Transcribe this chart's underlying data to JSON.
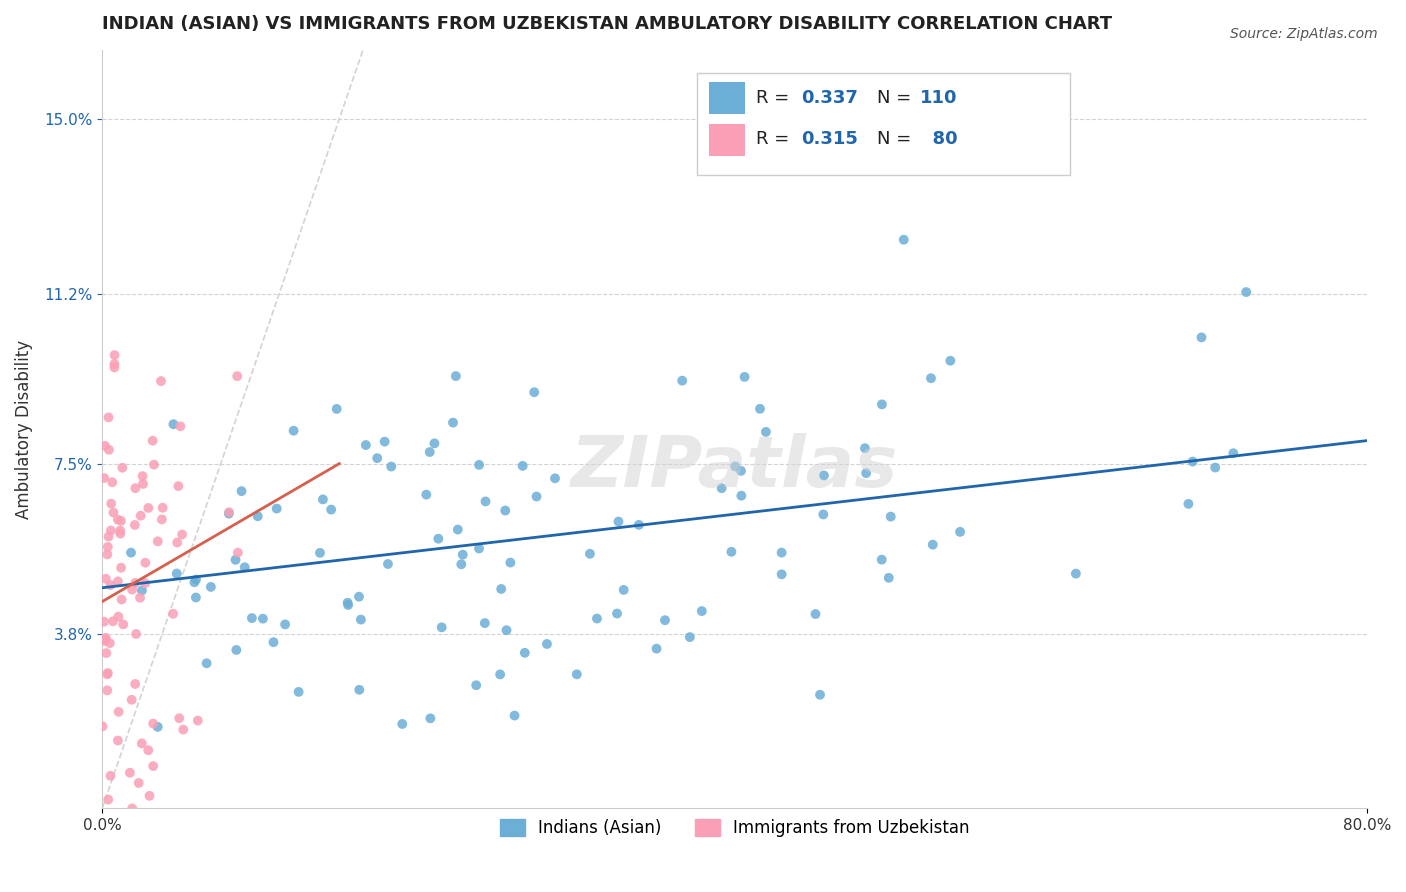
{
  "title": "INDIAN (ASIAN) VS IMMIGRANTS FROM UZBEKISTAN AMBULATORY DISABILITY CORRELATION CHART",
  "source": "Source: ZipAtlas.com",
  "xlabel": "",
  "ylabel": "Ambulatory Disability",
  "xlim": [
    0.0,
    0.8
  ],
  "ylim": [
    0.0,
    0.165
  ],
  "ytick_vals": [
    0.038,
    0.075,
    0.112,
    0.15
  ],
  "ytick_labels": [
    "3.8%",
    "7.5%",
    "11.2%",
    "15.0%"
  ],
  "xtick_vals": [
    0.0,
    0.8
  ],
  "xtick_labels": [
    "0.0%",
    "80.0%"
  ],
  "blue_color": "#6baed6",
  "pink_color": "#fa9fb5",
  "blue_line_color": "#2166ac",
  "pink_line_color": "#d6604d",
  "legend_label_blue": "Indians (Asian)",
  "legend_label_pink": "Immigrants from Uzbekistan",
  "watermark": "ZIPatlas",
  "blue_N": 110,
  "pink_N": 80,
  "blue_intercept": 0.048,
  "blue_slope": 0.04,
  "pink_intercept": 0.045,
  "pink_slope": 0.2,
  "axis_color": "#2166ac",
  "tick_label_color": "#2166ac",
  "title_color": "#222222",
  "source_color": "#555555",
  "grid_color": "lightgray",
  "ref_line_color": "lightgray",
  "bg_color": "white"
}
